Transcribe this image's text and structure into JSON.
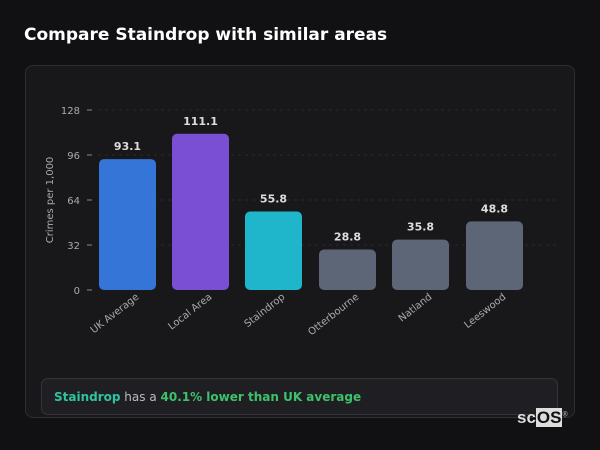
{
  "title": "Compare Staindrop with similar areas",
  "chart_data": {
    "type": "bar",
    "categories": [
      "UK Average",
      "Local Area",
      "Staindrop",
      "Otterbourne",
      "Natland",
      "Leeswood"
    ],
    "values": [
      93.1,
      111.1,
      55.8,
      28.8,
      35.8,
      48.8
    ],
    "value_labels": [
      "93.1",
      "111.1",
      "55.8",
      "28.8",
      "35.8",
      "48.8"
    ],
    "colors": [
      "#3575d8",
      "#7b4fd3",
      "#1fb6cc",
      "#5d6677",
      "#5d6677",
      "#5d6677"
    ],
    "ylabel": "Crimes per 1,000",
    "xlabel": "",
    "ylim": [
      0,
      128
    ],
    "yticks": [
      0,
      32,
      64,
      96,
      128
    ],
    "grid": true
  },
  "summary": {
    "area": "Staindrop",
    "middle": " has a ",
    "comparison": "40.1% lower than UK average"
  },
  "logo": {
    "text_a": "sc",
    "text_b": "OS",
    "mark": "®"
  }
}
